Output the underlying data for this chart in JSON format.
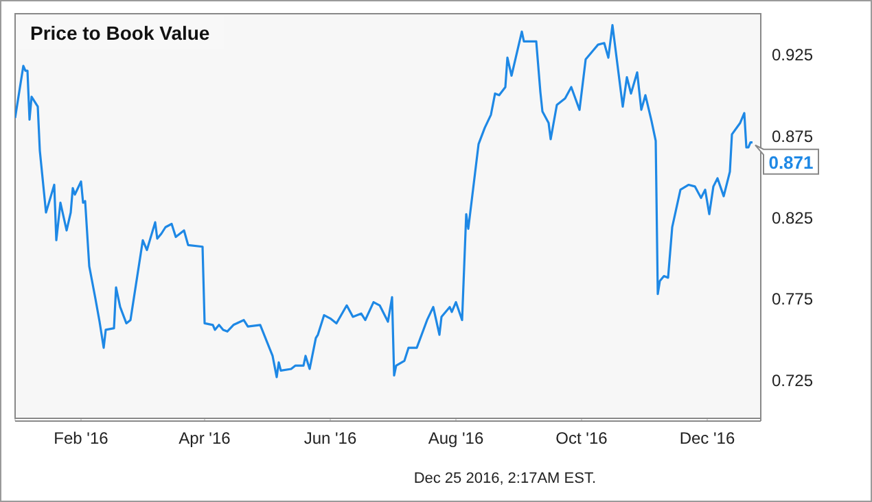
{
  "chart_data": {
    "type": "line",
    "title": "Price to Book Value",
    "x": [
      "2015-12-31",
      "2016-01-04",
      "2016-01-05",
      "2016-01-06",
      "2016-01-07",
      "2016-01-08",
      "2016-01-11",
      "2016-01-12",
      "2016-01-15",
      "2016-01-19",
      "2016-01-20",
      "2016-01-22",
      "2016-01-25",
      "2016-01-27",
      "2016-01-28",
      "2016-01-29",
      "2016-02-01",
      "2016-02-02",
      "2016-02-03",
      "2016-02-05",
      "2016-02-08",
      "2016-02-10",
      "2016-02-12",
      "2016-02-13",
      "2016-02-17",
      "2016-02-18",
      "2016-02-20",
      "2016-02-23",
      "2016-02-25",
      "2016-03-02",
      "2016-03-04",
      "2016-03-08",
      "2016-03-09",
      "2016-03-11",
      "2016-03-13",
      "2016-03-16",
      "2016-03-18",
      "2016-03-22",
      "2016-03-24",
      "2016-03-31",
      "2016-04-01",
      "2016-04-05",
      "2016-04-06",
      "2016-04-08",
      "2016-04-10",
      "2016-04-12",
      "2016-04-15",
      "2016-04-20",
      "2016-04-22",
      "2016-04-28",
      "2016-05-04",
      "2016-05-06",
      "2016-05-07",
      "2016-05-08",
      "2016-05-13",
      "2016-05-15",
      "2016-05-19",
      "2016-05-20",
      "2016-05-22",
      "2016-05-25",
      "2016-05-26",
      "2016-05-29",
      "2016-06-01",
      "2016-06-04",
      "2016-06-09",
      "2016-06-12",
      "2016-06-16",
      "2016-06-18",
      "2016-06-22",
      "2016-06-25",
      "2016-06-29",
      "2016-07-01",
      "2016-07-02",
      "2016-07-03",
      "2016-07-07",
      "2016-07-09",
      "2016-07-13",
      "2016-07-18",
      "2016-07-21",
      "2016-07-24",
      "2016-07-25",
      "2016-07-29",
      "2016-07-30",
      "2016-08-01",
      "2016-08-04",
      "2016-08-06",
      "2016-08-07",
      "2016-08-12",
      "2016-08-15",
      "2016-08-18",
      "2016-08-20",
      "2016-08-22",
      "2016-08-25",
      "2016-08-26",
      "2016-08-28",
      "2016-09-02",
      "2016-09-03",
      "2016-09-09",
      "2016-09-11",
      "2016-09-12",
      "2016-09-15",
      "2016-09-16",
      "2016-09-19",
      "2016-09-23",
      "2016-09-26",
      "2016-09-30",
      "2016-10-03",
      "2016-10-07",
      "2016-10-09",
      "2016-10-12",
      "2016-10-14",
      "2016-10-16",
      "2016-10-21",
      "2016-10-23",
      "2016-10-25",
      "2016-10-28",
      "2016-10-30",
      "2016-11-01",
      "2016-11-04",
      "2016-11-06",
      "2016-11-07",
      "2016-11-08",
      "2016-11-10",
      "2016-11-12",
      "2016-11-14",
      "2016-11-18",
      "2016-11-22",
      "2016-11-25",
      "2016-11-28",
      "2016-11-30",
      "2016-12-02",
      "2016-12-04",
      "2016-12-06",
      "2016-12-09",
      "2016-12-12",
      "2016-12-13",
      "2016-12-17",
      "2016-12-19",
      "2016-12-20",
      "2016-12-21",
      "2016-12-22",
      "2016-12-23"
    ],
    "series": [
      {
        "color": "#1e88e5",
        "values": [
          0.886,
          0.918,
          0.915,
          0.915,
          0.885,
          0.899,
          0.893,
          0.866,
          0.828,
          0.845,
          0.811,
          0.834,
          0.817,
          0.828,
          0.843,
          0.839,
          0.847,
          0.834,
          0.835,
          0.795,
          0.775,
          0.761,
          0.745,
          0.756,
          0.757,
          0.782,
          0.77,
          0.76,
          0.762,
          0.811,
          0.805,
          0.822,
          0.812,
          0.815,
          0.819,
          0.821,
          0.813,
          0.817,
          0.808,
          0.807,
          0.76,
          0.759,
          0.756,
          0.759,
          0.756,
          0.755,
          0.759,
          0.762,
          0.758,
          0.759,
          0.74,
          0.727,
          0.736,
          0.731,
          0.732,
          0.734,
          0.734,
          0.74,
          0.732,
          0.751,
          0.753,
          0.765,
          0.763,
          0.76,
          0.771,
          0.764,
          0.766,
          0.762,
          0.773,
          0.771,
          0.761,
          0.776,
          0.728,
          0.734,
          0.737,
          0.745,
          0.745,
          0.762,
          0.77,
          0.753,
          0.764,
          0.77,
          0.767,
          0.773,
          0.762,
          0.827,
          0.818,
          0.87,
          0.88,
          0.888,
          0.901,
          0.9,
          0.905,
          0.923,
          0.912,
          0.939,
          0.933,
          0.933,
          0.902,
          0.89,
          0.883,
          0.873,
          0.894,
          0.898,
          0.905,
          0.891,
          0.922,
          0.928,
          0.931,
          0.932,
          0.923,
          0.943,
          0.893,
          0.911,
          0.901,
          0.914,
          0.891,
          0.9,
          0.884,
          0.872,
          0.778,
          0.786,
          0.789,
          0.788,
          0.819,
          0.842,
          0.845,
          0.844,
          0.837,
          0.842,
          0.827,
          0.844,
          0.849,
          0.838,
          0.853,
          0.876,
          0.883,
          0.889,
          0.868,
          0.868,
          0.871,
          0.871
        ]
      }
    ],
    "xlim": [
      "2015-12-31",
      "2016-12-27"
    ],
    "xticks": [
      {
        "value": "2016-02-01",
        "label": "Feb '16"
      },
      {
        "value": "2016-04-01",
        "label": "Apr '16"
      },
      {
        "value": "2016-06-01",
        "label": "Jun '16"
      },
      {
        "value": "2016-08-01",
        "label": "Aug '16"
      },
      {
        "value": "2016-10-01",
        "label": "Oct '16"
      },
      {
        "value": "2016-12-01",
        "label": "Dec '16"
      }
    ],
    "ylim": [
      0.7,
      0.95
    ],
    "yticks": [
      0.725,
      0.775,
      0.825,
      0.875,
      0.925
    ],
    "grid": true,
    "annotations": [
      {
        "text": "0.871",
        "x": "2016-12-23",
        "y": 0.871
      },
      "Dec 25 2016, 2:17AM EST."
    ]
  }
}
